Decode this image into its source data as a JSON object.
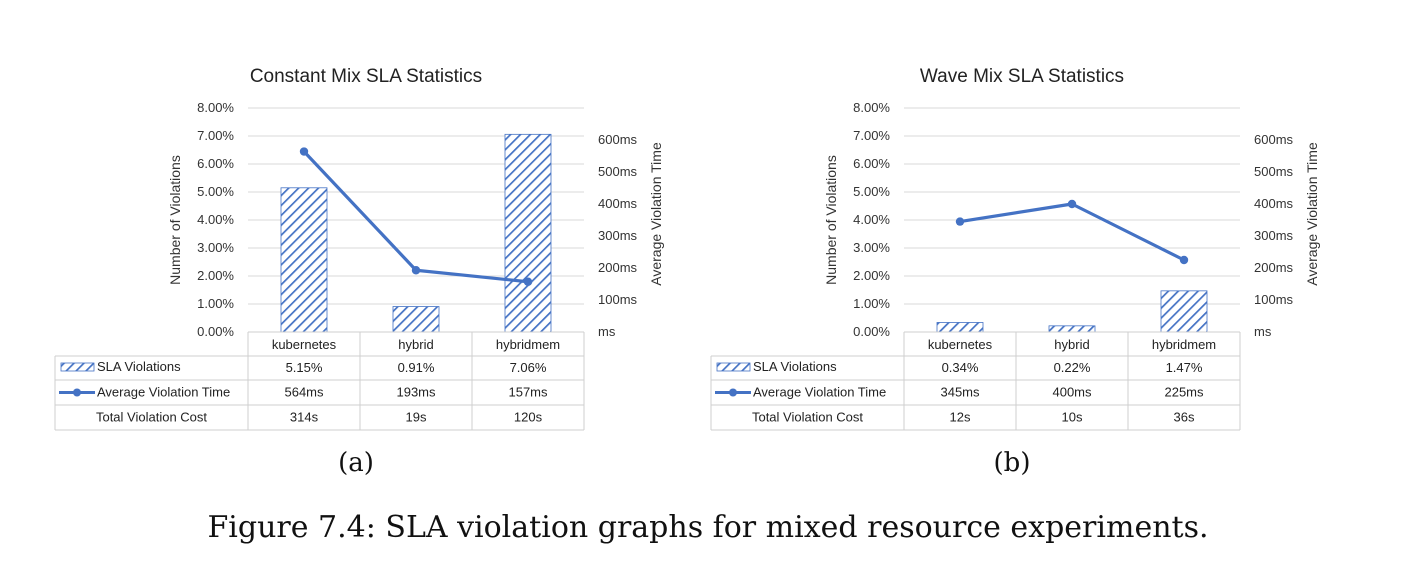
{
  "colors": {
    "bar": "#4472c4",
    "line": "#4472c4"
  },
  "caption": "Figure 7.4: SLA violation graphs for mixed resource experiments.",
  "chart_data": [
    {
      "type": "bar",
      "title": "Constant Mix SLA Statistics",
      "panel_label": "(a)",
      "categories": [
        "kubernetes",
        "hybrid",
        "hybridmem"
      ],
      "ylabel": "Number of Violations",
      "y2label": "Average Violation Time",
      "ylim": [
        0,
        8
      ],
      "y2lim": [
        0,
        700
      ],
      "yticks": [
        "0.00%",
        "1.00%",
        "2.00%",
        "3.00%",
        "4.00%",
        "5.00%",
        "6.00%",
        "7.00%",
        "8.00%"
      ],
      "y2ticks": [
        "ms",
        "100ms",
        "200ms",
        "300ms",
        "400ms",
        "500ms",
        "600ms"
      ],
      "series": [
        {
          "name": "SLA Violations",
          "kind": "bar",
          "values": [
            5.15,
            0.91,
            7.06
          ],
          "labels": [
            "5.15%",
            "0.91%",
            "7.06%"
          ]
        },
        {
          "name": "Average Violation Time",
          "kind": "line",
          "axis": "right",
          "values": [
            564,
            193,
            157
          ],
          "labels": [
            "564ms",
            "193ms",
            "157ms"
          ]
        },
        {
          "name": "Total Violation Cost",
          "kind": "table",
          "values": [
            314,
            19,
            120
          ],
          "labels": [
            "314s",
            "19s",
            "120s"
          ]
        }
      ]
    },
    {
      "type": "bar",
      "title": "Wave Mix SLA Statistics",
      "panel_label": "(b)",
      "categories": [
        "kubernetes",
        "hybrid",
        "hybridmem"
      ],
      "ylabel": "Number of Violations",
      "y2label": "Average Violation Time",
      "ylim": [
        0,
        8
      ],
      "y2lim": [
        0,
        700
      ],
      "yticks": [
        "0.00%",
        "1.00%",
        "2.00%",
        "3.00%",
        "4.00%",
        "5.00%",
        "6.00%",
        "7.00%",
        "8.00%"
      ],
      "y2ticks": [
        "ms",
        "100ms",
        "200ms",
        "300ms",
        "400ms",
        "500ms",
        "600ms"
      ],
      "series": [
        {
          "name": "SLA Violations",
          "kind": "bar",
          "values": [
            0.34,
            0.22,
            1.47
          ],
          "labels": [
            "0.34%",
            "0.22%",
            "1.47%"
          ]
        },
        {
          "name": "Average Violation Time",
          "kind": "line",
          "axis": "right",
          "values": [
            345,
            400,
            225
          ],
          "labels": [
            "345ms",
            "400ms",
            "225ms"
          ]
        },
        {
          "name": "Total Violation Cost",
          "kind": "table",
          "values": [
            12,
            10,
            36
          ],
          "labels": [
            "12s",
            "10s",
            "36s"
          ]
        }
      ]
    }
  ]
}
